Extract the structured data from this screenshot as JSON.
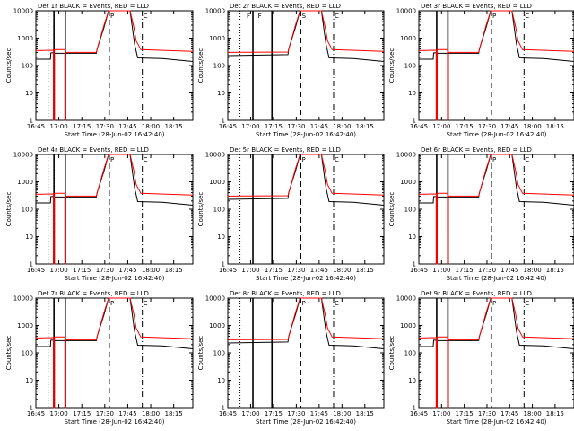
{
  "colors": {
    "events": "#000000",
    "lld": "#ff0000",
    "axis": "#000000",
    "background": "#ffffff"
  },
  "chart_data": [
    {
      "type": "line",
      "title": "Det 1r BLACK = Events, RED = LLD",
      "xlabel": "Start Time (28-Jun-02 16:42:40)",
      "ylabel": "Counts/sec",
      "yscale": "log",
      "ylim": [
        1,
        10000
      ],
      "xlim_minutes": [
        -2.5,
        100
      ],
      "xtick_labels": [
        "16:45",
        "17:00",
        "17:15",
        "17:30",
        "17:45",
        "18:00",
        "18:15"
      ],
      "ytick_labels": [
        "1",
        "10",
        "100",
        "1000",
        "10000"
      ],
      "markers": [
        "P",
        "C"
      ],
      "shape": "one"
    },
    {
      "type": "line",
      "title": "Det 2r BLACK = Events, RED = LLD",
      "xlabel": "Start Time (28-Jun-02 16:42:40)",
      "ylabel": "Counts/sec",
      "yscale": "log",
      "ylim": [
        1,
        10000
      ],
      "xlim_minutes": [
        -2.5,
        100
      ],
      "xtick_labels": [
        "16:45",
        "17:00",
        "17:15",
        "17:30",
        "17:45",
        "18:00",
        "18:15"
      ],
      "ytick_labels": [
        "1",
        "10",
        "100",
        "1000",
        "10000"
      ],
      "markers": [
        "F",
        "F",
        "S",
        "C"
      ],
      "shape": "two"
    },
    {
      "type": "line",
      "title": "Det 3r BLACK = Events, RED = LLD",
      "xlabel": "Start Time (28-Jun-02 16:42:40)",
      "ylabel": "Counts/sec",
      "yscale": "log",
      "ylim": [
        1,
        10000
      ],
      "xlim_minutes": [
        -2.5,
        100
      ],
      "xtick_labels": [
        "16:45",
        "17:00",
        "17:15",
        "17:30",
        "17:45",
        "18:00",
        "18:15"
      ],
      "ytick_labels": [
        "1",
        "10",
        "100",
        "1000",
        "10000"
      ],
      "markers": [
        "P",
        "C"
      ],
      "shape": "one"
    },
    {
      "type": "line",
      "title": "Det 4r BLACK = Events, RED = LLD",
      "xlabel": "Start Time (28-Jun-02 16:42:40)",
      "ylabel": "Counts/sec",
      "yscale": "log",
      "ylim": [
        1,
        10000
      ],
      "xlim_minutes": [
        -2.5,
        100
      ],
      "xtick_labels": [
        "16:45",
        "17:00",
        "17:15",
        "17:30",
        "17:45",
        "18:00",
        "18:15"
      ],
      "ytick_labels": [
        "1",
        "10",
        "100",
        "1000",
        "10000"
      ],
      "markers": [
        "P",
        "C"
      ],
      "shape": "one"
    },
    {
      "type": "line",
      "title": "Det 5r BLACK = Events, RED = LLD",
      "xlabel": "Start Time (28-Jun-02 16:42:40)",
      "ylabel": "Counts/sec",
      "yscale": "log",
      "ylim": [
        1,
        10000
      ],
      "xlim_minutes": [
        -2.5,
        100
      ],
      "xtick_labels": [
        "16:45",
        "17:00",
        "17:15",
        "17:30",
        "17:45",
        "18:00",
        "18:15"
      ],
      "ytick_labels": [
        "1",
        "10",
        "100",
        "1000",
        "10000"
      ],
      "markers": [
        "P",
        "C"
      ],
      "shape": "two"
    },
    {
      "type": "line",
      "title": "Det 6r BLACK = Events, RED = LLD",
      "xlabel": "Start Time (28-Jun-02 16:42:40)",
      "ylabel": "Counts/sec",
      "yscale": "log",
      "ylim": [
        1,
        10000
      ],
      "xlim_minutes": [
        -2.5,
        100
      ],
      "xtick_labels": [
        "16:45",
        "17:00",
        "17:15",
        "17:30",
        "17:45",
        "18:00",
        "18:15"
      ],
      "ytick_labels": [
        "1",
        "10",
        "100",
        "1000",
        "10000"
      ],
      "markers": [
        "P",
        "C"
      ],
      "shape": "one"
    },
    {
      "type": "line",
      "title": "Det 7r BLACK = Events, RED = LLD",
      "xlabel": "Start Time (28-Jun-02 16:42:40)",
      "ylabel": "Counts/sec",
      "yscale": "log",
      "ylim": [
        1,
        10000
      ],
      "xlim_minutes": [
        -2.5,
        100
      ],
      "xtick_labels": [
        "16:45",
        "17:00",
        "17:15",
        "17:30",
        "17:45",
        "18:00",
        "18:15"
      ],
      "ytick_labels": [
        "1",
        "10",
        "100",
        "1000",
        "10000"
      ],
      "markers": [
        "P",
        "C"
      ],
      "shape": "one"
    },
    {
      "type": "line",
      "title": "Det 8r BLACK = Events, RED = LLD",
      "xlabel": "Start Time (28-Jun-02 16:42:40)",
      "ylabel": "Counts/sec",
      "yscale": "log",
      "ylim": [
        1,
        10000
      ],
      "xlim_minutes": [
        -2.5,
        100
      ],
      "xtick_labels": [
        "16:45",
        "17:00",
        "17:15",
        "17:30",
        "17:45",
        "18:00",
        "18:15"
      ],
      "ytick_labels": [
        "1",
        "10",
        "100",
        "1000",
        "10000"
      ],
      "markers": [
        "P",
        "C"
      ],
      "shape": "two"
    },
    {
      "type": "line",
      "title": "Det 9r BLACK = Events, RED = LLD",
      "xlabel": "Start Time (28-Jun-02 16:42:40)",
      "ylabel": "Counts/sec",
      "yscale": "log",
      "ylim": [
        1,
        10000
      ],
      "xlim_minutes": [
        -2.5,
        100
      ],
      "xtick_labels": [
        "16:45",
        "17:00",
        "17:15",
        "17:30",
        "17:45",
        "18:00",
        "18:15"
      ],
      "ytick_labels": [
        "1",
        "10",
        "100",
        "1000",
        "10000"
      ],
      "markers": [
        "P",
        "C"
      ],
      "shape": "one"
    }
  ],
  "series_profiles": {
    "one": {
      "events": [
        [
          -2.5,
          170
        ],
        [
          7,
          170
        ],
        [
          7.3,
          290
        ],
        [
          9,
          290
        ],
        [
          9,
          0.5
        ],
        [
          9.6,
          0.5
        ],
        [
          9.6,
          280
        ],
        [
          16.5,
          280
        ],
        [
          16.5,
          0.5
        ],
        [
          17,
          0.5
        ],
        [
          17,
          280
        ],
        [
          37,
          280
        ],
        [
          37.5,
          400
        ],
        [
          42,
          2500
        ],
        [
          45,
          10000
        ],
        [
          59,
          10000
        ],
        [
          62,
          600
        ],
        [
          64,
          190
        ],
        [
          80,
          180
        ],
        [
          100,
          140
        ]
      ],
      "lld": [
        [
          -2.5,
          350
        ],
        [
          9,
          360
        ],
        [
          9,
          0.5
        ],
        [
          9.6,
          0.5
        ],
        [
          9.6,
          380
        ],
        [
          16.5,
          380
        ],
        [
          16.5,
          0.5
        ],
        [
          17,
          0.5
        ],
        [
          17,
          300
        ],
        [
          37,
          300
        ],
        [
          38,
          500
        ],
        [
          42,
          3000
        ],
        [
          45,
          10000
        ],
        [
          59,
          10000
        ],
        [
          61.5,
          2500
        ],
        [
          63,
          800
        ],
        [
          66,
          380
        ],
        [
          100,
          330
        ]
      ],
      "dashed_x": [
        5.5,
        45.5,
        67
      ],
      "solid_x": [
        9.3,
        16.7
      ]
    },
    "two": {
      "events": [
        [
          -2.5,
          230
        ],
        [
          37,
          250
        ],
        [
          37.5,
          400
        ],
        [
          42,
          2500
        ],
        [
          45,
          10000
        ],
        [
          59,
          10000
        ],
        [
          62,
          600
        ],
        [
          64,
          190
        ],
        [
          80,
          180
        ],
        [
          100,
          140
        ]
      ],
      "lld": [
        [
          -2.5,
          300
        ],
        [
          37,
          310
        ],
        [
          38,
          500
        ],
        [
          42,
          3000
        ],
        [
          45,
          10000
        ],
        [
          59,
          10000
        ],
        [
          61.5,
          2500
        ],
        [
          63,
          800
        ],
        [
          66,
          380
        ],
        [
          100,
          330
        ]
      ],
      "dashed_x": [
        5.5,
        45.5,
        67
      ],
      "solid_x": [
        14,
        26.5
      ]
    }
  }
}
